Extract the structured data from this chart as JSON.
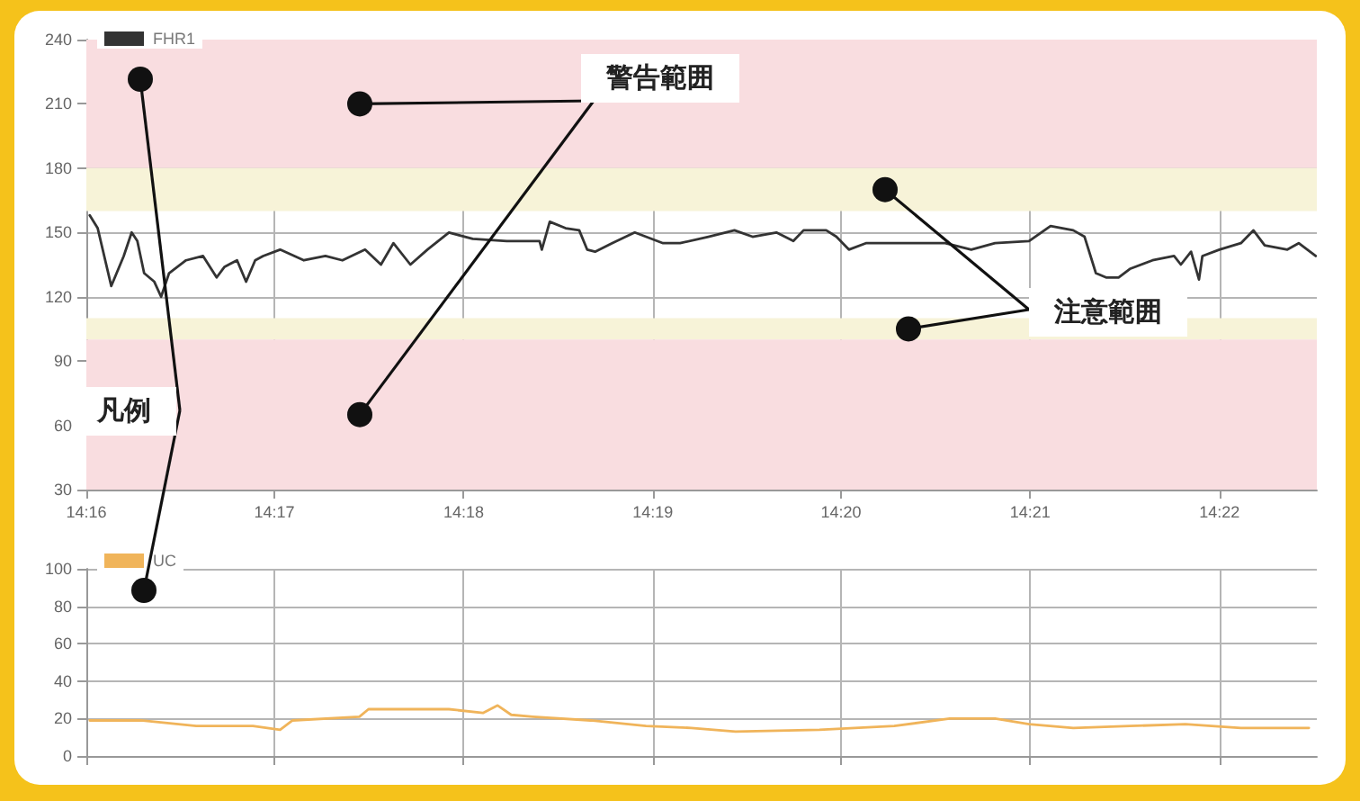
{
  "chart_data": [
    {
      "type": "line",
      "annotations": [
        "凡例"
      ],
      "xlim": [
        14.2667,
        14.3753
      ],
      "xticks": [
        {
          "value": 14.2667,
          "label": "14:16"
        },
        {
          "value": 14.2833,
          "label": "14:17"
        },
        {
          "value": 14.3,
          "label": "14:18"
        },
        {
          "value": 14.3167,
          "label": "14:19"
        },
        {
          "value": 14.3333,
          "label": "14:20"
        },
        {
          "value": 14.35,
          "label": "14:21"
        },
        {
          "value": 14.3667,
          "label": "14:22"
        }
      ],
      "ylim": [
        30,
        240
      ],
      "yticks": [
        30,
        60,
        90,
        120,
        150,
        180,
        210,
        240
      ],
      "grid": true,
      "legend": "top left",
      "marker": "none",
      "line_style": "solid",
      "bands": [
        {
          "axis": "y",
          "from": 180,
          "to": 240,
          "color": "#f9dde0",
          "label": "警告範囲"
        },
        {
          "axis": "y",
          "from": 160,
          "to": 180,
          "color": "#f7f3d8",
          "label": "注意範囲"
        },
        {
          "axis": "y",
          "from": 100,
          "to": 110,
          "color": "#f7f3d8"
        },
        {
          "axis": "y",
          "from": 30,
          "to": 100,
          "color": "#f9dde0"
        }
      ],
      "series": [
        {
          "name": "FHR1",
          "color": "#333333",
          "x": [
            14.267,
            14.2677,
            14.2689,
            14.27,
            14.2707,
            14.2712,
            14.2718,
            14.2727,
            14.2733,
            14.274,
            14.2755,
            14.277,
            14.2782,
            14.2789,
            14.28,
            14.2808,
            14.2816,
            14.2823,
            14.2838,
            14.2859,
            14.2878,
            14.2893,
            14.2913,
            14.2927,
            14.2938,
            14.2953,
            14.2968,
            14.2987,
            14.3008,
            14.3038,
            14.3067,
            14.3069,
            14.3076,
            14.309,
            14.3102,
            14.3109,
            14.3116,
            14.3131,
            14.3151,
            14.3176,
            14.3191,
            14.3216,
            14.3239,
            14.3255,
            14.3276,
            14.3291,
            14.33,
            14.332,
            14.3329,
            14.334,
            14.3355,
            14.3389,
            14.3425,
            14.3448,
            14.3469,
            14.3499,
            14.3518,
            14.3538,
            14.3548,
            14.3558,
            14.3567,
            14.3578,
            14.3588,
            14.3608,
            14.3627,
            14.3633,
            14.3642,
            14.3649,
            14.3652,
            14.3667,
            14.3686,
            14.3697,
            14.3707,
            14.3727,
            14.3737,
            14.3752
          ],
          "values": [
            158,
            152,
            125,
            139,
            150,
            146,
            131,
            127,
            120,
            131,
            137,
            139,
            129,
            134,
            137,
            127,
            137,
            139,
            142,
            137,
            139,
            137,
            142,
            135,
            145,
            135,
            142,
            150,
            147,
            146,
            146,
            142,
            155,
            152,
            151,
            142,
            141,
            145,
            150,
            145,
            145,
            148,
            151,
            148,
            150,
            146,
            151,
            151,
            148,
            142,
            145,
            145,
            145,
            142,
            145,
            146,
            153,
            151,
            148,
            131,
            129,
            129,
            133,
            137,
            139,
            135,
            141,
            128,
            139,
            142,
            145,
            151,
            144,
            142,
            145,
            139
          ]
        }
      ]
    },
    {
      "type": "line",
      "xlim": [
        14.2667,
        14.3753
      ],
      "xticks": [
        {
          "value": 14.2667,
          "label": null
        },
        {
          "value": 14.2833,
          "label": null
        },
        {
          "value": 14.3,
          "label": null
        },
        {
          "value": 14.3167,
          "label": null
        },
        {
          "value": 14.3333,
          "label": null
        },
        {
          "value": 14.35,
          "label": null
        },
        {
          "value": 14.3667,
          "label": null
        }
      ],
      "ylim": [
        0,
        100
      ],
      "yticks": [
        0,
        20,
        40,
        60,
        80,
        100
      ],
      "tick_labels": "y",
      "grid": true,
      "legend": "top left",
      "marker": "none",
      "line_style": "solid",
      "series": [
        {
          "name": "UC",
          "color": "#f0b45a",
          "x": [
            14.267,
            14.2715,
            14.2764,
            14.2814,
            14.2838,
            14.2849,
            14.2908,
            14.2916,
            14.2987,
            14.3017,
            14.303,
            14.3042,
            14.3061,
            14.3112,
            14.3161,
            14.3201,
            14.324,
            14.3314,
            14.338,
            14.3429,
            14.3469,
            14.3499,
            14.3538,
            14.3588,
            14.3637,
            14.3686,
            14.3746
          ],
          "values": [
            19,
            19,
            16,
            16,
            14,
            19,
            21,
            25,
            25,
            23,
            27,
            22,
            21,
            19,
            16,
            15,
            13,
            14,
            16,
            20,
            20,
            17,
            15,
            16,
            17,
            15,
            15
          ]
        }
      ]
    }
  ]
}
